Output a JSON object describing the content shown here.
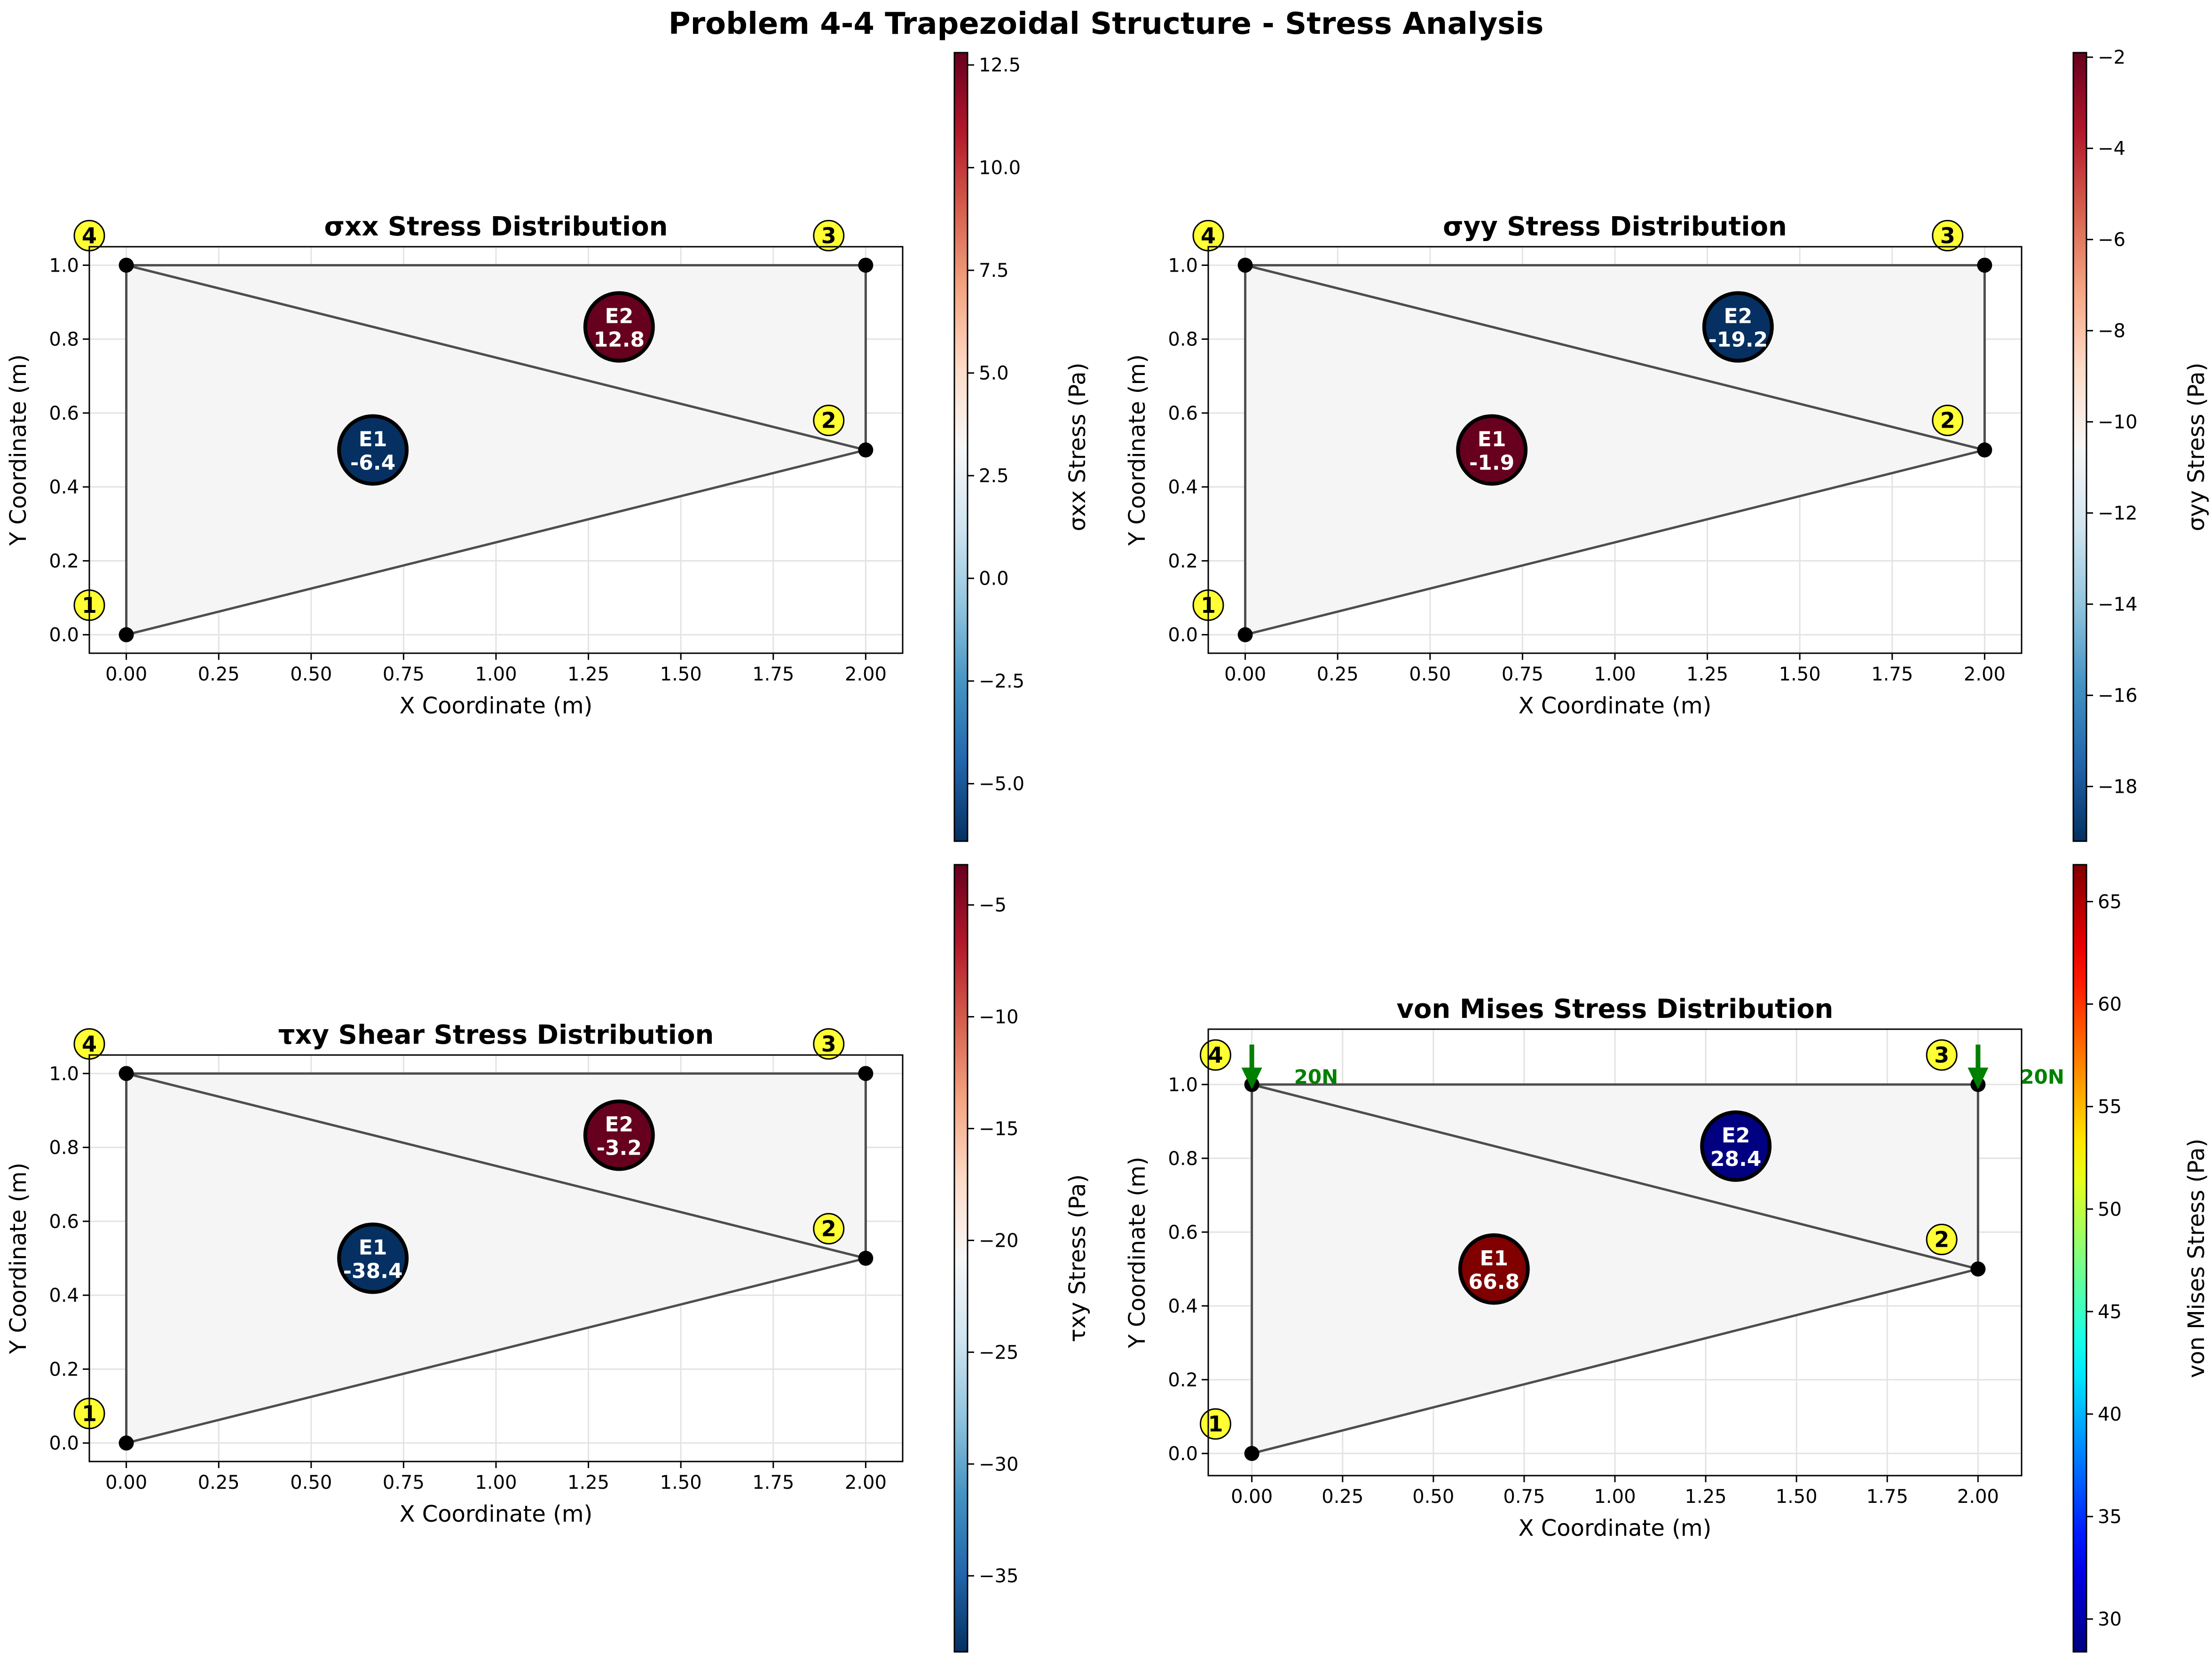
{
  "figure_title": "Problem 4-4 Trapezoidal Structure - Stress Analysis",
  "colors": {
    "node_fill": "#ffff33",
    "mesh_fill": "#f5f5f5",
    "mesh_edge": "#4d4d4d",
    "load_arrow": "#008000",
    "grid": "#e3e3e3"
  },
  "nodes": [
    {
      "id": "1",
      "x": 0,
      "y": 0
    },
    {
      "id": "2",
      "x": 2,
      "y": 0.5
    },
    {
      "id": "3",
      "x": 2,
      "y": 1
    },
    {
      "id": "4",
      "x": 0,
      "y": 1
    }
  ],
  "elements": [
    {
      "id": "E1",
      "nodes": [
        "1",
        "2",
        "4"
      ],
      "centroid": [
        0.667,
        0.5
      ]
    },
    {
      "id": "E2",
      "nodes": [
        "2",
        "3",
        "4"
      ],
      "centroid": [
        1.333,
        0.833
      ]
    }
  ],
  "chart_data": [
    {
      "type": "scatter",
      "title": "σxx Stress Distribution",
      "xlabel": "X Coordinate (m)",
      "ylabel": "Y Coordinate (m)",
      "xlim": [
        -0.1,
        2.1
      ],
      "ylim": [
        -0.05,
        1.05
      ],
      "xticks": [
        "0.00",
        "0.25",
        "0.50",
        "0.75",
        "1.00",
        "1.25",
        "1.50",
        "1.75",
        "2.00"
      ],
      "yticks": [
        "0.0",
        "0.2",
        "0.4",
        "0.6",
        "0.8",
        "1.0"
      ],
      "grid": true,
      "element_values": [
        {
          "id": "E1",
          "label": "-6.4",
          "value": -6.4
        },
        {
          "id": "E2",
          "label": "12.8",
          "value": 12.8
        }
      ],
      "colorbar": {
        "label": "σxx Stress (Pa)",
        "cmap": "RdBu_r",
        "range": [
          -6.4,
          12.8
        ],
        "ticks": [
          "12.5",
          "10.0",
          "7.5",
          "5.0",
          "2.5",
          "0.0",
          "−2.5",
          "−5.0"
        ],
        "tick_values": [
          12.5,
          10,
          7.5,
          5,
          2.5,
          0,
          -2.5,
          -5
        ]
      },
      "loads": []
    },
    {
      "type": "scatter",
      "title": "σyy Stress Distribution",
      "xlabel": "X Coordinate (m)",
      "ylabel": "Y Coordinate (m)",
      "xlim": [
        -0.1,
        2.1
      ],
      "ylim": [
        -0.05,
        1.05
      ],
      "xticks": [
        "0.00",
        "0.25",
        "0.50",
        "0.75",
        "1.00",
        "1.25",
        "1.50",
        "1.75",
        "2.00"
      ],
      "yticks": [
        "0.0",
        "0.2",
        "0.4",
        "0.6",
        "0.8",
        "1.0"
      ],
      "grid": true,
      "element_values": [
        {
          "id": "E1",
          "label": "-1.9",
          "value": -1.9
        },
        {
          "id": "E2",
          "label": "-19.2",
          "value": -19.2
        }
      ],
      "colorbar": {
        "label": "σyy Stress (Pa)",
        "cmap": "RdBu_r",
        "range": [
          -19.2,
          -1.9
        ],
        "ticks": [
          "−2",
          "−4",
          "−6",
          "−8",
          "−10",
          "−12",
          "−14",
          "−16",
          "−18"
        ],
        "tick_values": [
          -2,
          -4,
          -6,
          -8,
          -10,
          -12,
          -14,
          -16,
          -18
        ]
      },
      "loads": []
    },
    {
      "type": "scatter",
      "title": "τxy Shear Stress Distribution",
      "xlabel": "X Coordinate (m)",
      "ylabel": "Y Coordinate (m)",
      "xlim": [
        -0.1,
        2.1
      ],
      "ylim": [
        -0.05,
        1.05
      ],
      "xticks": [
        "0.00",
        "0.25",
        "0.50",
        "0.75",
        "1.00",
        "1.25",
        "1.50",
        "1.75",
        "2.00"
      ],
      "yticks": [
        "0.0",
        "0.2",
        "0.4",
        "0.6",
        "0.8",
        "1.0"
      ],
      "grid": true,
      "element_values": [
        {
          "id": "E1",
          "label": "-38.4",
          "value": -38.4
        },
        {
          "id": "E2",
          "label": "-3.2",
          "value": -3.2
        }
      ],
      "colorbar": {
        "label": "τxy Stress (Pa)",
        "cmap": "RdBu_r",
        "range": [
          -38.4,
          -3.2
        ],
        "ticks": [
          "−5",
          "−10",
          "−15",
          "−20",
          "−25",
          "−30",
          "−35"
        ],
        "tick_values": [
          -5,
          -10,
          -15,
          -20,
          -25,
          -30,
          -35
        ]
      },
      "loads": []
    },
    {
      "type": "scatter",
      "title": "von Mises Stress Distribution",
      "xlabel": "X Coordinate (m)",
      "ylabel": "Y Coordinate (m)",
      "xlim": [
        -0.12,
        2.12
      ],
      "ylim": [
        -0.06,
        1.15
      ],
      "xticks": [
        "0.00",
        "0.25",
        "0.50",
        "0.75",
        "1.00",
        "1.25",
        "1.50",
        "1.75",
        "2.00"
      ],
      "yticks": [
        "0.0",
        "0.2",
        "0.4",
        "0.6",
        "0.8",
        "1.0"
      ],
      "grid": true,
      "element_values": [
        {
          "id": "E1",
          "label": "66.8",
          "value": 66.8
        },
        {
          "id": "E2",
          "label": "28.4",
          "value": 28.4
        }
      ],
      "colorbar": {
        "label": "von Mises Stress (Pa)",
        "cmap": "jet",
        "range": [
          28.4,
          66.8
        ],
        "ticks": [
          "65",
          "60",
          "55",
          "50",
          "45",
          "40",
          "35",
          "30"
        ],
        "tick_values": [
          65,
          60,
          55,
          50,
          45,
          40,
          35,
          30
        ]
      },
      "loads": [
        {
          "node": "4",
          "x": 0,
          "y": 1,
          "label": "20N"
        },
        {
          "node": "3",
          "x": 2,
          "y": 1,
          "label": "20N"
        }
      ]
    }
  ]
}
